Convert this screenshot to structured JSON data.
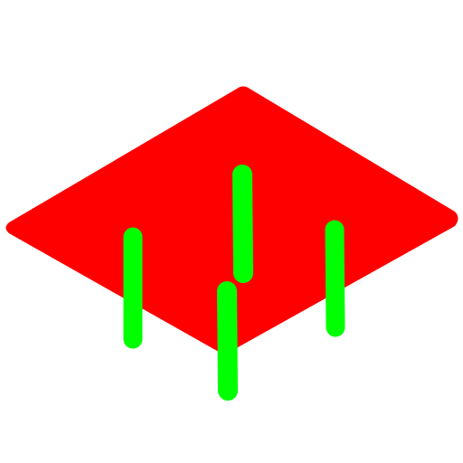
{
  "scene": {
    "plane_color": "#ff0000",
    "peg_color": "#00ff00",
    "background_color": "#ffffff",
    "plane_shape": "rhombus-plate",
    "peg_count": 4
  }
}
